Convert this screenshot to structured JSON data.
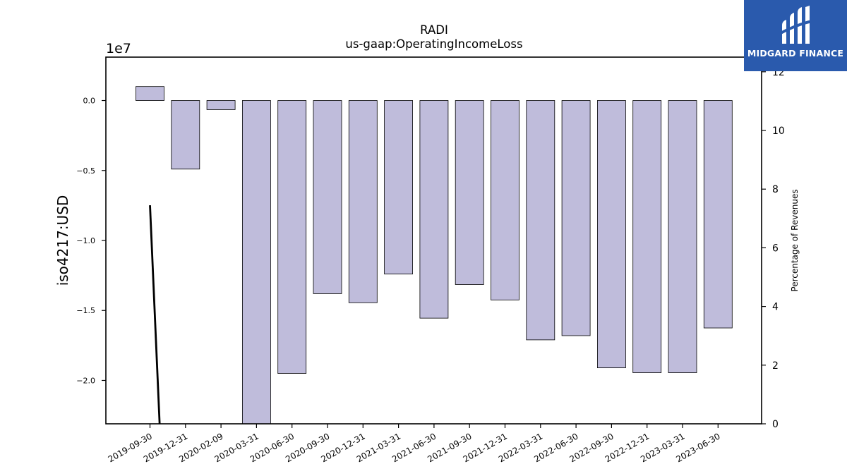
{
  "chart_data": {
    "type": "bar",
    "title": "RADI",
    "subtitle": "us-gaap:OperatingIncomeLoss",
    "ylabel": "iso4217:USD",
    "y2label": "Percentage of Revenues",
    "y_multiplier": "1e7",
    "categories": [
      "2019-09-30",
      "2019-12-31",
      "2020-02-09",
      "2020-03-31",
      "2020-06-30",
      "2020-09-30",
      "2020-12-31",
      "2021-03-31",
      "2021-06-30",
      "2021-09-30",
      "2021-12-31",
      "2022-03-31",
      "2022-06-30",
      "2022-09-30",
      "2022-12-31",
      "2023-03-31",
      "2023-06-30"
    ],
    "values": [
      1000000,
      -4900000,
      -650000,
      -24000000,
      -19500000,
      -13800000,
      -14450000,
      -12400000,
      -15550000,
      -13150000,
      -14250000,
      -17100000,
      -16800000,
      -19100000,
      -19450000,
      -19450000,
      -16250000
    ],
    "ylim": [
      -23100000,
      3100000
    ],
    "yticks": [
      0.0,
      -0.5,
      -1.0,
      -1.5,
      -2.0
    ],
    "ytick_labels": [
      "0.0",
      "−0.5",
      "−1.0",
      "−1.5",
      "−2.0"
    ],
    "y2lim": [
      0,
      12.5
    ],
    "y2ticks": [
      0,
      2,
      4,
      6,
      8,
      10,
      12
    ],
    "secondary_line": {
      "x": [
        "2019-09-30",
        "2019-12-31"
      ],
      "values": [
        7.45,
        -20.0
      ]
    },
    "bar_color": "#bfbcdb",
    "line_color": "#000000"
  },
  "logo": {
    "text": "MIDGARD FINANCE"
  }
}
